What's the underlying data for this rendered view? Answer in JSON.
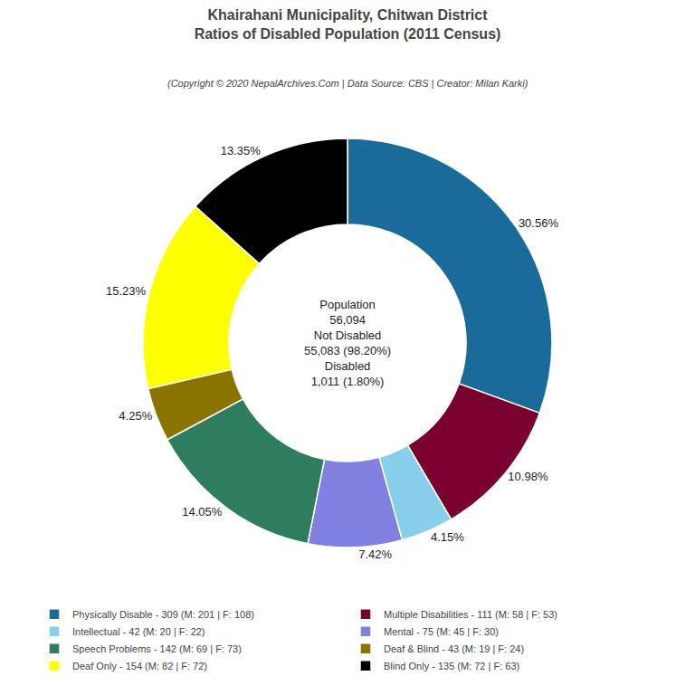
{
  "chart_data": {
    "type": "pie",
    "title": [
      "Khairahani Municipality, Chitwan District",
      "Ratios of Disabled Population (2011 Census)"
    ],
    "subtitle": "(Copyright © 2020 NepalArchives.Com | Data Source: CBS | Creator: Milan Karki)",
    "categories": [
      "Physically Disable - 309 (M: 201 | F: 108)",
      "Multiple Disabilities - 111 (M: 58 | F: 53)",
      "Intellectual - 42 (M: 20 | F: 22)",
      "Mental - 75 (M: 45 | F: 30)",
      "Speech Problems - 142 (M: 69 | F: 73)",
      "Deaf & Blind - 43 (M: 19 | F: 24)",
      "Deaf Only - 154 (M: 82 | F: 72)",
      "Blind Only - 135 (M: 72 | F: 63)"
    ],
    "values": [
      30.56,
      10.98,
      4.15,
      7.42,
      14.05,
      4.25,
      15.23,
      13.35
    ],
    "value_labels": [
      "30.56%",
      "10.98%",
      "4.15%",
      "7.42%",
      "14.05%",
      "4.25%",
      "15.23%",
      "13.35%"
    ],
    "colors": [
      "#1a6b9a",
      "#7a0030",
      "#87ceeb",
      "#8080e0",
      "#2e7d5e",
      "#8b7300",
      "#ffff00",
      "#000000"
    ],
    "annotations": [
      "Population",
      "56,094",
      "Not Disabled",
      "55,083 (98.20%)",
      "Disabled",
      "1,011 (1.80%)"
    ],
    "data_labels": true,
    "legend": "bottom"
  }
}
